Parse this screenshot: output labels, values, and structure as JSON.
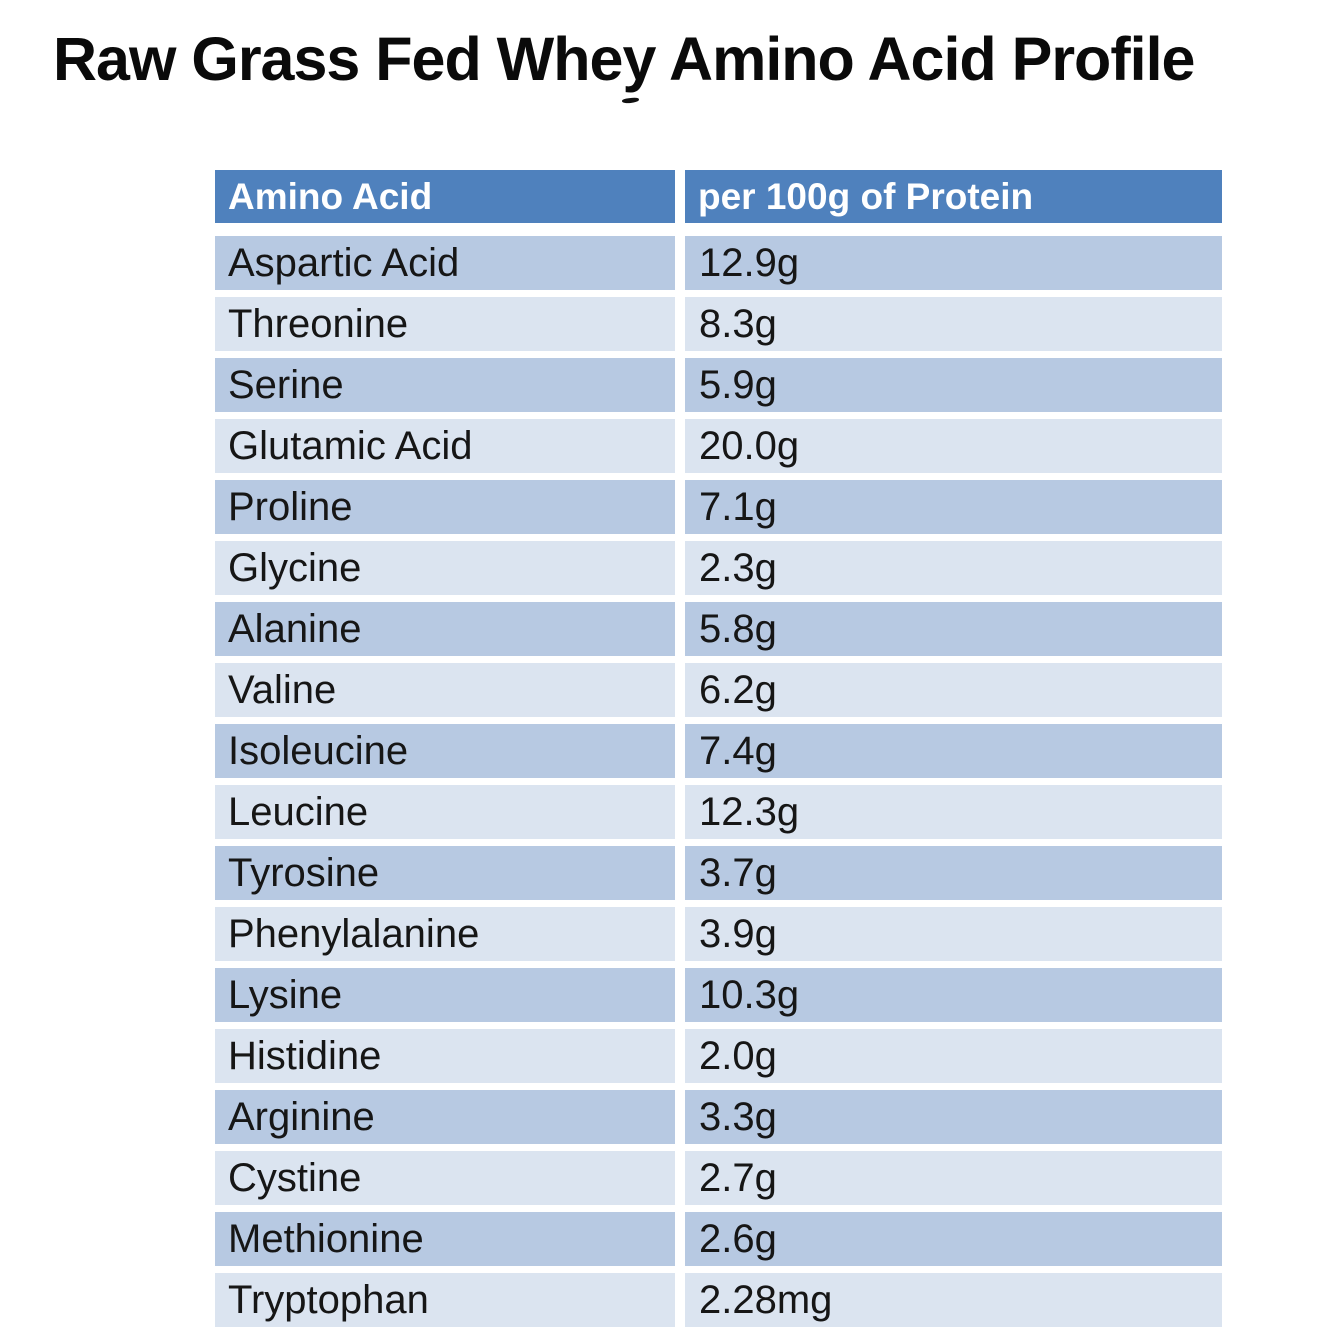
{
  "title": "Raw Grass Fed Whey Amino Acid Profile",
  "colors": {
    "header_bg": "#4F81BD",
    "row_dark": "#B7C9E2",
    "row_light": "#DBE4F0",
    "header_text": "#FFFFFF",
    "body_text": "#161616",
    "title_text": "#0A0A0A"
  },
  "chart_data": {
    "type": "table",
    "title": "Raw Grass Fed Whey Amino Acid Profile",
    "columns": [
      "Amino Acid",
      "per 100g of Protein"
    ],
    "rows": [
      [
        "Aspartic Acid",
        "12.9g"
      ],
      [
        "Threonine",
        "8.3g"
      ],
      [
        "Serine",
        "5.9g"
      ],
      [
        "Glutamic Acid",
        "20.0g"
      ],
      [
        "Proline",
        "7.1g"
      ],
      [
        "Glycine",
        "2.3g"
      ],
      [
        "Alanine",
        "5.8g"
      ],
      [
        "Valine",
        "6.2g"
      ],
      [
        "Isoleucine",
        "7.4g"
      ],
      [
        "Leucine",
        "12.3g"
      ],
      [
        "Tyrosine",
        "3.7g"
      ],
      [
        "Phenylalanine",
        "3.9g"
      ],
      [
        "Lysine",
        "10.3g"
      ],
      [
        "Histidine",
        "2.0g"
      ],
      [
        "Arginine",
        "3.3g"
      ],
      [
        "Cystine",
        "2.7g"
      ],
      [
        "Methionine",
        "2.6g"
      ],
      [
        "Tryptophan",
        "2.28mg"
      ]
    ],
    "layout": {
      "striped": true,
      "first_data_row_shade": "dark",
      "grid": "white gutters between cells"
    }
  }
}
